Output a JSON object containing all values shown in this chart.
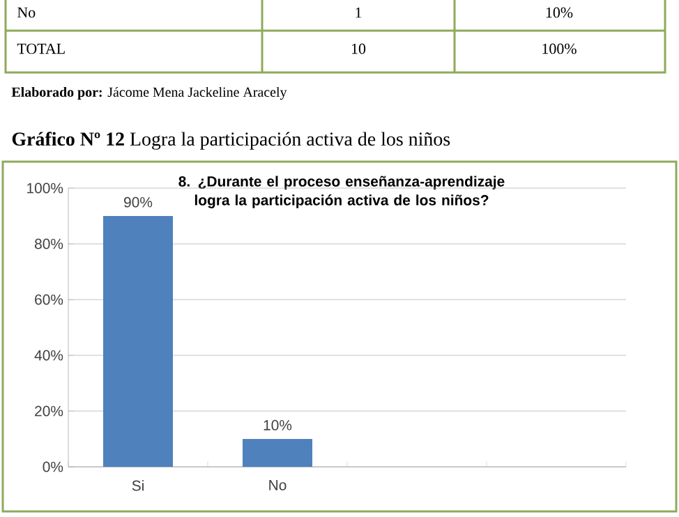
{
  "chart_data": {
    "type": "bar",
    "title": "8.      ¿Durante el proceso enseñanza-aprendizaje logra la participación activa de los niños?",
    "categories": [
      "Si",
      "No",
      null,
      null
    ],
    "values": [
      90,
      10,
      null,
      null
    ],
    "value_labels": [
      "90%",
      "10%",
      null,
      null
    ],
    "color": "#4f81bd",
    "ylim": [
      0,
      100
    ],
    "yticks": [
      {
        "value": 0,
        "label": "0%"
      },
      {
        "value": 20,
        "label": "20%"
      },
      {
        "value": 40,
        "label": "40%"
      },
      {
        "value": 60,
        "label": "60%"
      },
      {
        "value": 80,
        "label": "80%"
      },
      {
        "value": 100,
        "label": "100%"
      }
    ],
    "grid": "y",
    "annotations": [
      "No",
      "1",
      "10%",
      "TOTAL",
      "10",
      "100%",
      "**Elaborado  por:** Jácome Mena Jackeline Aracely",
      "**Gráfico Nº 12** Logra la participación activa de los niños"
    ]
  }
}
